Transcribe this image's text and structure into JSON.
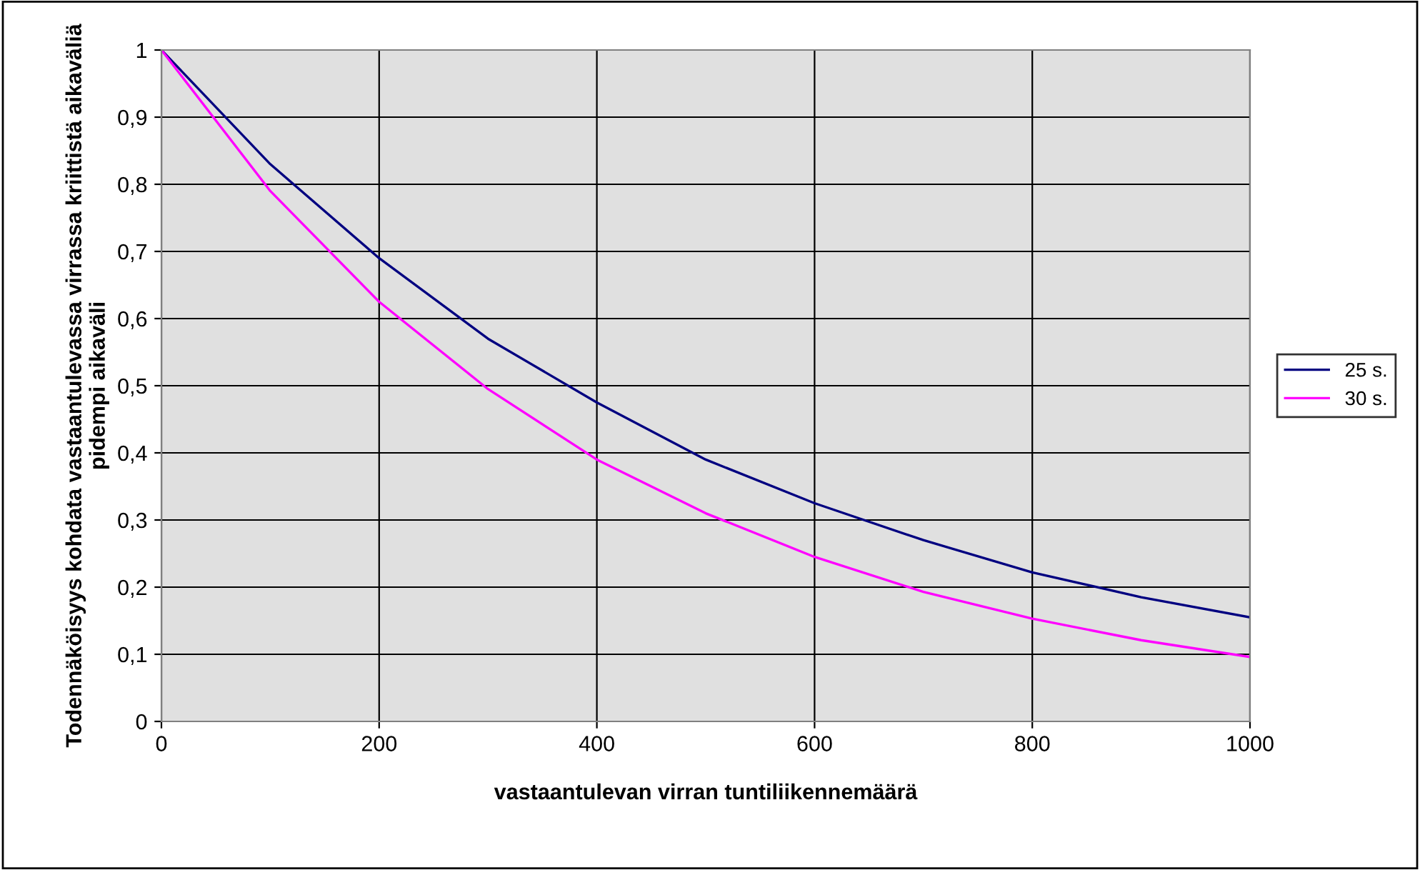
{
  "chart_data": {
    "type": "line",
    "xlabel": "vastaantulevan virran tuntiliikennemäärä",
    "ylabel": "Todennäköisyys kohdata vastaantulevassa virrassa kriittistä aikaväliä pidempi aikaväli",
    "x": [
      0,
      100,
      200,
      300,
      400,
      500,
      600,
      700,
      800,
      900,
      1000
    ],
    "series": [
      {
        "name": "25 s.",
        "color": "#000080",
        "values": [
          1,
          0.83,
          0.69,
          0.57,
          0.475,
          0.39,
          0.325,
          0.27,
          0.222,
          0.185,
          0.155
        ]
      },
      {
        "name": "30 s.",
        "color": "#ff00ff",
        "values": [
          1,
          0.79,
          0.625,
          0.495,
          0.39,
          0.31,
          0.245,
          0.193,
          0.153,
          0.121,
          0.096
        ]
      }
    ],
    "xlim": [
      0,
      1000
    ],
    "xticks": [
      0,
      200,
      400,
      600,
      800,
      1000
    ],
    "ylim": [
      0,
      1
    ],
    "yticks": [
      0,
      {
        "value": 0.1,
        "label": "0,1"
      },
      {
        "value": 0.2,
        "label": "0,2"
      },
      {
        "value": 0.3,
        "label": "0,3"
      },
      {
        "value": 0.4,
        "label": "0,4"
      },
      {
        "value": 0.5,
        "label": "0,5"
      },
      {
        "value": 0.6,
        "label": "0,6"
      },
      {
        "value": 0.7,
        "label": "0,7"
      },
      {
        "value": 0.8,
        "label": "0,8"
      },
      {
        "value": 0.9,
        "label": "0,9"
      },
      1
    ],
    "grid": true,
    "legend": "right",
    "marker": "none",
    "line_style": "solid"
  }
}
